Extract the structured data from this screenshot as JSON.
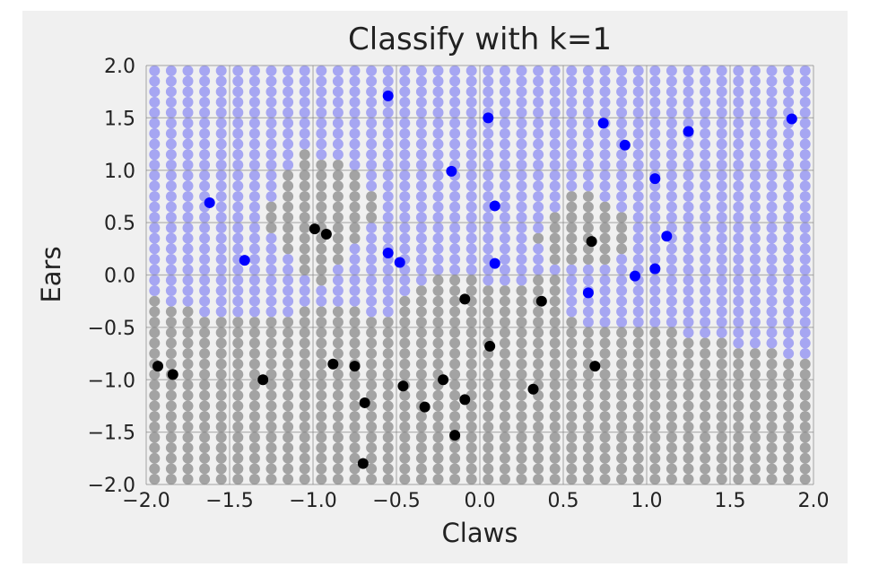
{
  "chart_data": {
    "type": "scatter",
    "title": "Classify with k=1",
    "xlabel": "Claws",
    "ylabel": "Ears",
    "xlim": [
      -2.0,
      2.0
    ],
    "ylim": [
      -2.0,
      2.0
    ],
    "xticks": [
      "−2.0",
      "−1.5",
      "−1.0",
      "−0.5",
      "0.0",
      "0.5",
      "1.0",
      "1.5",
      "2.0"
    ],
    "yticks": [
      "−2.0",
      "−1.5",
      "−1.0",
      "−0.5",
      "0.0",
      "0.5",
      "1.0",
      "1.5",
      "2.0"
    ],
    "grid": true,
    "colors": {
      "class_1": "#0000ff",
      "class_0": "#000000",
      "region_1": "#a6a6f2",
      "region_0": "#a3a3a3",
      "background": "#f0f0f0"
    },
    "grid_step": 0.1,
    "series": [
      {
        "class": 1,
        "points": [
          [
            -1.62,
            0.69
          ],
          [
            -1.41,
            0.14
          ],
          [
            -0.55,
            1.71
          ],
          [
            -0.55,
            0.21
          ],
          [
            -0.48,
            0.12
          ],
          [
            -0.17,
            0.99
          ],
          [
            0.05,
            1.5
          ],
          [
            0.09,
            0.66
          ],
          [
            0.09,
            0.11
          ],
          [
            0.65,
            -0.17
          ],
          [
            0.74,
            1.45
          ],
          [
            0.87,
            1.24
          ],
          [
            0.93,
            -0.01
          ],
          [
            1.05,
            0.92
          ],
          [
            1.05,
            0.06
          ],
          [
            1.12,
            0.37
          ],
          [
            1.25,
            1.37
          ],
          [
            1.87,
            1.49
          ]
        ]
      },
      {
        "class": 0,
        "points": [
          [
            -1.93,
            -0.87
          ],
          [
            -1.84,
            -0.95
          ],
          [
            -1.3,
            -1.0
          ],
          [
            -0.99,
            0.44
          ],
          [
            -0.92,
            0.39
          ],
          [
            -0.88,
            -0.85
          ],
          [
            -0.75,
            -0.87
          ],
          [
            -0.69,
            -1.22
          ],
          [
            -0.7,
            -1.8
          ],
          [
            -0.46,
            -1.06
          ],
          [
            -0.33,
            -1.26
          ],
          [
            -0.22,
            -1.0
          ],
          [
            -0.15,
            -1.53
          ],
          [
            -0.09,
            -0.23
          ],
          [
            -0.09,
            -1.19
          ],
          [
            0.06,
            -0.68
          ],
          [
            0.32,
            -1.09
          ],
          [
            0.37,
            -0.25
          ],
          [
            0.67,
            0.32
          ],
          [
            0.69,
            -0.87
          ]
        ]
      }
    ]
  }
}
